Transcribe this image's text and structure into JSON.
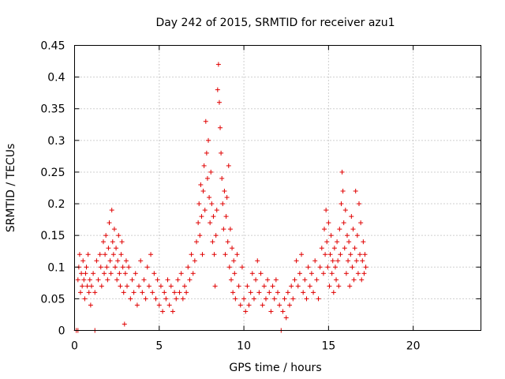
{
  "chart_data": {
    "type": "scatter",
    "title": "Day 242 of 2015, SRMTID for receiver azu1",
    "xlabel": "GPS time / hours",
    "ylabel": "SRMTID / TECUs",
    "xlim": [
      0,
      24
    ],
    "ylim": [
      0,
      0.45
    ],
    "xticks": [
      0,
      5,
      10,
      15,
      20
    ],
    "yticks": [
      0,
      0.05,
      0.1,
      0.15,
      0.2,
      0.25,
      0.3,
      0.35,
      0.4,
      0.45
    ],
    "xtick_labels": [
      "0",
      "5",
      "10",
      "15",
      "20"
    ],
    "ytick_labels": [
      "0",
      "0.05",
      "0.1",
      "0.15",
      "0.2",
      "0.25",
      "0.3",
      "0.35",
      "0.4",
      "0.45"
    ],
    "grid": true,
    "marker": "+",
    "color": "#e00000",
    "series": [
      {
        "name": "SRMTID",
        "points": [
          [
            0.1,
            0.0
          ],
          [
            0.2,
            0.0
          ],
          [
            1.2,
            0.0
          ],
          [
            12.2,
            0.0
          ],
          [
            0.2,
            0.08
          ],
          [
            0.25,
            0.1
          ],
          [
            0.3,
            0.12
          ],
          [
            0.35,
            0.06
          ],
          [
            0.4,
            0.09
          ],
          [
            0.45,
            0.07
          ],
          [
            0.5,
            0.11
          ],
          [
            0.55,
            0.08
          ],
          [
            0.6,
            0.05
          ],
          [
            0.65,
            0.09
          ],
          [
            0.7,
            0.1
          ],
          [
            0.75,
            0.07
          ],
          [
            0.8,
            0.12
          ],
          [
            0.85,
            0.06
          ],
          [
            0.9,
            0.08
          ],
          [
            0.95,
            0.04
          ],
          [
            1.0,
            0.07
          ],
          [
            1.1,
            0.09
          ],
          [
            1.2,
            0.06
          ],
          [
            1.3,
            0.11
          ],
          [
            1.4,
            0.08
          ],
          [
            1.5,
            0.12
          ],
          [
            1.55,
            0.1
          ],
          [
            1.6,
            0.07
          ],
          [
            1.7,
            0.14
          ],
          [
            1.75,
            0.09
          ],
          [
            1.8,
            0.12
          ],
          [
            1.85,
            0.15
          ],
          [
            1.9,
            0.1
          ],
          [
            1.95,
            0.08
          ],
          [
            2.0,
            0.13
          ],
          [
            2.05,
            0.17
          ],
          [
            2.1,
            0.11
          ],
          [
            2.15,
            0.09
          ],
          [
            2.2,
            0.19
          ],
          [
            2.25,
            0.14
          ],
          [
            2.3,
            0.12
          ],
          [
            2.35,
            0.16
          ],
          [
            2.4,
            0.1
          ],
          [
            2.45,
            0.13
          ],
          [
            2.5,
            0.08
          ],
          [
            2.55,
            0.11
          ],
          [
            2.6,
            0.15
          ],
          [
            2.65,
            0.09
          ],
          [
            2.7,
            0.07
          ],
          [
            2.75,
            0.12
          ],
          [
            2.8,
            0.14
          ],
          [
            2.85,
            0.1
          ],
          [
            2.9,
            0.06
          ],
          [
            2.95,
            0.01
          ],
          [
            3.0,
            0.09
          ],
          [
            3.05,
            0.11
          ],
          [
            3.1,
            0.07
          ],
          [
            3.2,
            0.1
          ],
          [
            3.3,
            0.05
          ],
          [
            3.4,
            0.08
          ],
          [
            3.5,
            0.06
          ],
          [
            3.6,
            0.09
          ],
          [
            3.7,
            0.04
          ],
          [
            3.8,
            0.07
          ],
          [
            3.9,
            0.11
          ],
          [
            4.0,
            0.06
          ],
          [
            4.1,
            0.08
          ],
          [
            4.2,
            0.05
          ],
          [
            4.3,
            0.1
          ],
          [
            4.4,
            0.07
          ],
          [
            4.5,
            0.12
          ],
          [
            4.6,
            0.06
          ],
          [
            4.7,
            0.09
          ],
          [
            4.8,
            0.05
          ],
          [
            4.9,
            0.08
          ],
          [
            5.0,
            0.04
          ],
          [
            5.1,
            0.07
          ],
          [
            5.2,
            0.03
          ],
          [
            5.3,
            0.06
          ],
          [
            5.4,
            0.05
          ],
          [
            5.5,
            0.08
          ],
          [
            5.6,
            0.04
          ],
          [
            5.7,
            0.07
          ],
          [
            5.8,
            0.03
          ],
          [
            5.9,
            0.06
          ],
          [
            6.0,
            0.05
          ],
          [
            6.1,
            0.08
          ],
          [
            6.2,
            0.06
          ],
          [
            6.3,
            0.09
          ],
          [
            6.4,
            0.05
          ],
          [
            6.5,
            0.07
          ],
          [
            6.6,
            0.06
          ],
          [
            6.7,
            0.1
          ],
          [
            6.8,
            0.08
          ],
          [
            6.9,
            0.12
          ],
          [
            7.0,
            0.09
          ],
          [
            7.1,
            0.11
          ],
          [
            7.2,
            0.14
          ],
          [
            7.3,
            0.17
          ],
          [
            7.35,
            0.2
          ],
          [
            7.4,
            0.15
          ],
          [
            7.45,
            0.23
          ],
          [
            7.5,
            0.18
          ],
          [
            7.55,
            0.12
          ],
          [
            7.6,
            0.22
          ],
          [
            7.65,
            0.26
          ],
          [
            7.7,
            0.19
          ],
          [
            7.75,
            0.33
          ],
          [
            7.8,
            0.28
          ],
          [
            7.85,
            0.24
          ],
          [
            7.9,
            0.3
          ],
          [
            7.95,
            0.21
          ],
          [
            8.0,
            0.17
          ],
          [
            8.05,
            0.25
          ],
          [
            8.1,
            0.2
          ],
          [
            8.15,
            0.14
          ],
          [
            8.2,
            0.18
          ],
          [
            8.25,
            0.12
          ],
          [
            8.3,
            0.07
          ],
          [
            8.35,
            0.15
          ],
          [
            8.4,
            0.19
          ],
          [
            8.45,
            0.38
          ],
          [
            8.5,
            0.42
          ],
          [
            8.55,
            0.36
          ],
          [
            8.6,
            0.32
          ],
          [
            8.65,
            0.28
          ],
          [
            8.7,
            0.24
          ],
          [
            8.75,
            0.2
          ],
          [
            8.8,
            0.16
          ],
          [
            8.85,
            0.22
          ],
          [
            8.9,
            0.12
          ],
          [
            8.95,
            0.18
          ],
          [
            9.0,
            0.21
          ],
          [
            9.05,
            0.14
          ],
          [
            9.1,
            0.26
          ],
          [
            9.15,
            0.1
          ],
          [
            9.2,
            0.16
          ],
          [
            9.25,
            0.08
          ],
          [
            9.3,
            0.13
          ],
          [
            9.35,
            0.06
          ],
          [
            9.4,
            0.11
          ],
          [
            9.45,
            0.09
          ],
          [
            9.5,
            0.05
          ],
          [
            9.6,
            0.12
          ],
          [
            9.7,
            0.07
          ],
          [
            9.8,
            0.04
          ],
          [
            9.9,
            0.1
          ],
          [
            10.0,
            0.05
          ],
          [
            10.1,
            0.03
          ],
          [
            10.2,
            0.07
          ],
          [
            10.3,
            0.04
          ],
          [
            10.4,
            0.06
          ],
          [
            10.5,
            0.09
          ],
          [
            10.6,
            0.05
          ],
          [
            10.7,
            0.08
          ],
          [
            10.8,
            0.11
          ],
          [
            10.9,
            0.06
          ],
          [
            11.0,
            0.09
          ],
          [
            11.1,
            0.04
          ],
          [
            11.2,
            0.07
          ],
          [
            11.3,
            0.05
          ],
          [
            11.4,
            0.08
          ],
          [
            11.5,
            0.06
          ],
          [
            11.6,
            0.03
          ],
          [
            11.7,
            0.07
          ],
          [
            11.8,
            0.05
          ],
          [
            11.9,
            0.08
          ],
          [
            12.0,
            0.06
          ],
          [
            12.1,
            0.04
          ],
          [
            12.3,
            0.03
          ],
          [
            12.4,
            0.05
          ],
          [
            12.5,
            0.02
          ],
          [
            12.6,
            0.06
          ],
          [
            12.7,
            0.04
          ],
          [
            12.8,
            0.07
          ],
          [
            12.9,
            0.05
          ],
          [
            13.0,
            0.08
          ],
          [
            13.1,
            0.11
          ],
          [
            13.2,
            0.07
          ],
          [
            13.3,
            0.09
          ],
          [
            13.4,
            0.12
          ],
          [
            13.5,
            0.06
          ],
          [
            13.6,
            0.08
          ],
          [
            13.7,
            0.05
          ],
          [
            13.8,
            0.1
          ],
          [
            13.9,
            0.07
          ],
          [
            14.0,
            0.09
          ],
          [
            14.1,
            0.06
          ],
          [
            14.2,
            0.11
          ],
          [
            14.3,
            0.08
          ],
          [
            14.4,
            0.05
          ],
          [
            14.5,
            0.1
          ],
          [
            14.6,
            0.13
          ],
          [
            14.7,
            0.09
          ],
          [
            14.75,
            0.16
          ],
          [
            14.8,
            0.12
          ],
          [
            14.85,
            0.19
          ],
          [
            14.9,
            0.14
          ],
          [
            14.95,
            0.1
          ],
          [
            15.0,
            0.17
          ],
          [
            15.05,
            0.07
          ],
          [
            15.1,
            0.12
          ],
          [
            15.15,
            0.15
          ],
          [
            15.2,
            0.09
          ],
          [
            15.25,
            0.11
          ],
          [
            15.3,
            0.06
          ],
          [
            15.35,
            0.13
          ],
          [
            15.4,
            0.1
          ],
          [
            15.45,
            0.08
          ],
          [
            15.5,
            0.14
          ],
          [
            15.55,
            0.11
          ],
          [
            15.6,
            0.07
          ],
          [
            15.65,
            0.16
          ],
          [
            15.7,
            0.12
          ],
          [
            15.75,
            0.2
          ],
          [
            15.8,
            0.25
          ],
          [
            15.85,
            0.22
          ],
          [
            15.9,
            0.17
          ],
          [
            15.95,
            0.13
          ],
          [
            16.0,
            0.19
          ],
          [
            16.05,
            0.09
          ],
          [
            16.1,
            0.15
          ],
          [
            16.15,
            0.11
          ],
          [
            16.2,
            0.14
          ],
          [
            16.25,
            0.07
          ],
          [
            16.3,
            0.12
          ],
          [
            16.35,
            0.18
          ],
          [
            16.4,
            0.1
          ],
          [
            16.45,
            0.16
          ],
          [
            16.5,
            0.08
          ],
          [
            16.55,
            0.13
          ],
          [
            16.6,
            0.22
          ],
          [
            16.65,
            0.11
          ],
          [
            16.7,
            0.15
          ],
          [
            16.75,
            0.09
          ],
          [
            16.8,
            0.2
          ],
          [
            16.85,
            0.12
          ],
          [
            16.9,
            0.17
          ],
          [
            16.95,
            0.08
          ],
          [
            17.0,
            0.11
          ],
          [
            17.05,
            0.14
          ],
          [
            17.1,
            0.09
          ],
          [
            17.15,
            0.12
          ],
          [
            17.2,
            0.1
          ]
        ]
      }
    ]
  }
}
